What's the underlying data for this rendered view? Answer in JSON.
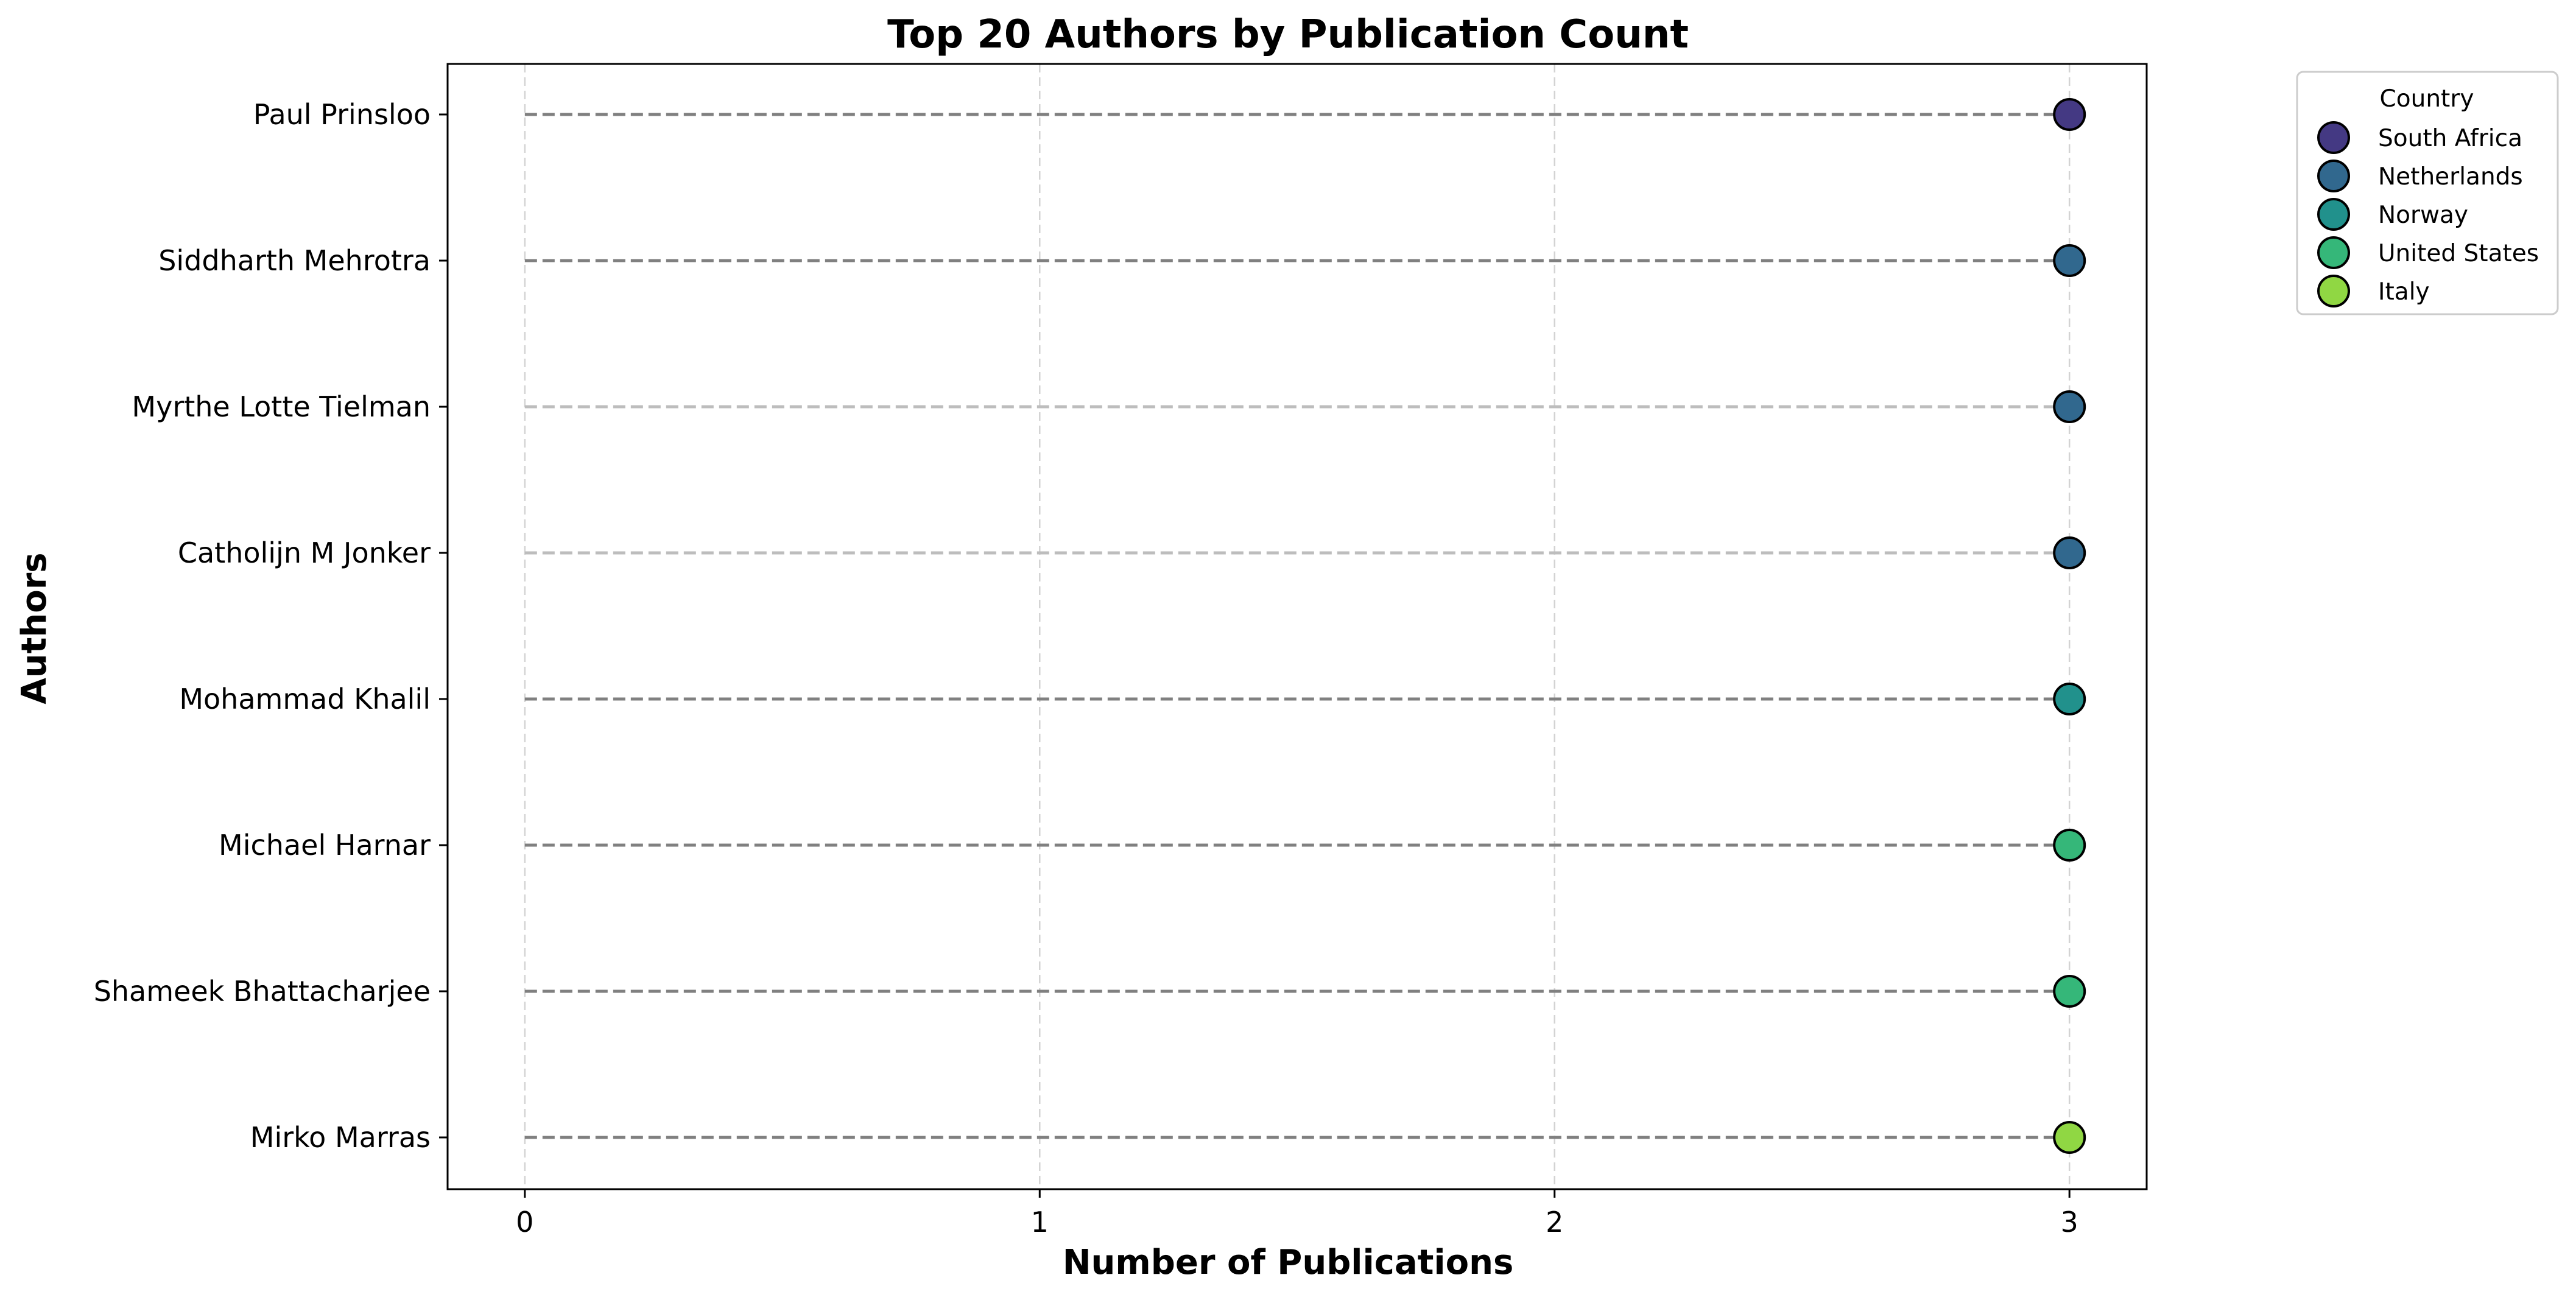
{
  "chart_data": {
    "type": "scatter",
    "title": "Top 20 Authors by Publication Count",
    "xlabel": "Number of Publications",
    "ylabel": "Authors",
    "xlim": [
      -0.15,
      3.15
    ],
    "xticks": [
      0,
      1,
      2,
      3
    ],
    "grid": "x-only, dashed",
    "stem_style": "dashed lines from 0 to value",
    "categories": [
      "Paul Prinsloo",
      "Siddharth Mehrotra",
      "Myrthe Lotte Tielman",
      "Catholijn M Jonker",
      "Mohammad Khalil",
      "Michael Harnar",
      "Shameek Bhattacharjee",
      "Mirko Marras"
    ],
    "values": [
      3,
      3,
      3,
      3,
      3,
      3,
      3,
      3
    ],
    "point_country": [
      "South Africa",
      "Netherlands",
      "Netherlands",
      "Netherlands",
      "Norway",
      "United States",
      "United States",
      "Italy"
    ],
    "stem_colors": [
      "#808080",
      "#808080",
      "#bdbdbd",
      "#bdbdbd",
      "#808080",
      "#808080",
      "#808080",
      "#808080"
    ],
    "legend": {
      "title": "Country",
      "placement": "outside-top-right",
      "entries": [
        {
          "name": "South Africa",
          "color": "#443983"
        },
        {
          "name": "Netherlands",
          "color": "#31688e"
        },
        {
          "name": "Norway",
          "color": "#21918c"
        },
        {
          "name": "United States",
          "color": "#35b779"
        },
        {
          "name": "Italy",
          "color": "#90d743"
        }
      ]
    }
  }
}
